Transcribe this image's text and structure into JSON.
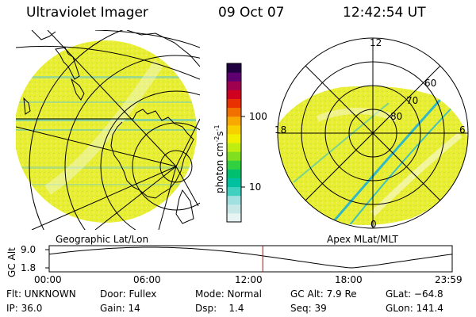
{
  "header": {
    "instrument": "Ultraviolet Imager",
    "date": "09 Oct 07",
    "time": "12:42:54 UT"
  },
  "left_panel": {
    "label": "Geographic Lat/Lon"
  },
  "right_panel": {
    "label": "Apex MLat/MLT",
    "mlt_labels": [
      "12",
      "18",
      "6",
      "0"
    ],
    "mlat_labels": [
      "60",
      "70",
      "80"
    ]
  },
  "colorbar": {
    "unit": "photon cm",
    "unit_exp1": "-2",
    "unit_mid": "s",
    "unit_exp2": "-1",
    "tick_labels": [
      "100",
      "10"
    ],
    "colors": [
      "#e8f4f4",
      "#c8e8e8",
      "#a0e0e0",
      "#40d0c0",
      "#00c0a0",
      "#00c070",
      "#30d040",
      "#80e020",
      "#c0ee10",
      "#f0f000",
      "#f8d000",
      "#f8a800",
      "#f07000",
      "#e83000",
      "#d00020",
      "#a00050",
      "#600070",
      "#200040"
    ]
  },
  "altitude_plot": {
    "ylabel": "GC Alt",
    "y_ticks": [
      "9.0",
      "1.8"
    ],
    "x_ticks": [
      "00:00",
      "06:00",
      "12:00",
      "18:00",
      "23:59"
    ],
    "current_time_hours": 12.72,
    "marker_color": "#d00000"
  },
  "info": {
    "flt": "Flt: UNKNOWN",
    "door": "Door: Fullex",
    "mode": "Mode: Normal",
    "gc_alt": "GC Alt: 7.9 Re",
    "glat": "GLat: −64.8",
    "ip": "IP: 36.0",
    "gain": "Gain: 14",
    "dsp": "Dsp:    1.4",
    "seq": "Seq: 39",
    "glon": "GLon: 141.4"
  }
}
